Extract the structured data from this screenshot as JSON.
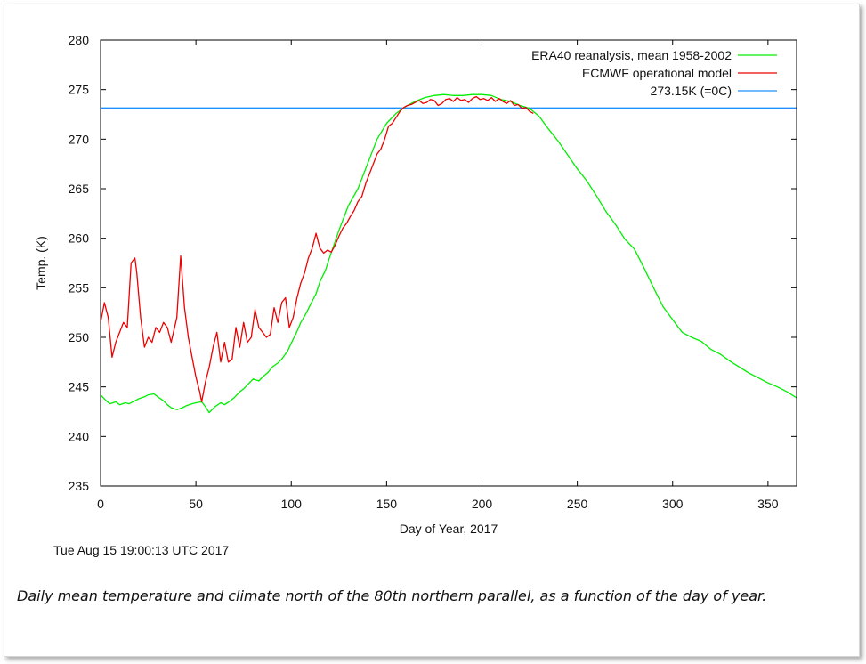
{
  "chart_data": {
    "type": "line",
    "xlabel": "Day of Year, 2017",
    "ylabel": "Temp. (K)",
    "xlim": [
      0,
      365
    ],
    "ylim": [
      235,
      280
    ],
    "xticks": [
      0,
      50,
      100,
      150,
      200,
      250,
      300,
      350
    ],
    "yticks": [
      235,
      240,
      245,
      250,
      255,
      260,
      265,
      270,
      275,
      280
    ],
    "legend_position": "top-right",
    "series": [
      {
        "name": "ERA40 reanalysis, mean 1958-2002",
        "color": "#00ee00",
        "x": [
          0,
          3,
          5,
          8,
          10,
          13,
          15,
          18,
          20,
          23,
          25,
          28,
          30,
          33,
          35,
          37,
          40,
          43,
          45,
          48,
          50,
          53,
          55,
          57,
          60,
          63,
          65,
          68,
          70,
          73,
          75,
          78,
          80,
          83,
          85,
          88,
          90,
          93,
          95,
          98,
          100,
          103,
          105,
          108,
          110,
          113,
          115,
          118,
          120,
          125,
          130,
          135,
          140,
          145,
          150,
          155,
          160,
          165,
          170,
          175,
          180,
          185,
          190,
          195,
          200,
          205,
          210,
          215,
          220,
          225,
          230,
          235,
          240,
          245,
          250,
          255,
          260,
          265,
          270,
          275,
          280,
          285,
          290,
          295,
          300,
          305,
          310,
          315,
          320,
          325,
          330,
          335,
          340,
          345,
          350,
          355,
          360,
          365
        ],
        "values": [
          244.2,
          243.6,
          243.3,
          243.5,
          243.2,
          243.4,
          243.3,
          243.6,
          243.8,
          244.0,
          244.2,
          244.3,
          244.0,
          243.6,
          243.2,
          242.9,
          242.7,
          242.9,
          243.1,
          243.3,
          243.4,
          243.5,
          243.0,
          242.4,
          243.0,
          243.4,
          243.2,
          243.6,
          243.9,
          244.5,
          244.8,
          245.4,
          245.8,
          245.6,
          246.0,
          246.5,
          247.0,
          247.4,
          247.8,
          248.6,
          249.4,
          250.6,
          251.5,
          252.5,
          253.3,
          254.4,
          255.6,
          256.8,
          258.0,
          260.8,
          263.3,
          265.0,
          267.5,
          270.0,
          271.6,
          272.6,
          273.3,
          273.8,
          274.2,
          274.4,
          274.5,
          274.4,
          274.4,
          274.5,
          274.5,
          274.4,
          274.0,
          273.8,
          273.4,
          273.1,
          272.3,
          271.0,
          269.8,
          268.4,
          267.0,
          265.8,
          264.3,
          262.7,
          261.4,
          259.9,
          258.9,
          257.0,
          255.0,
          253.1,
          251.8,
          250.5,
          250.0,
          249.6,
          248.8,
          248.3,
          247.6,
          247.0,
          246.4,
          245.9,
          245.4,
          245.0,
          244.5,
          243.9
        ]
      },
      {
        "name": "ECMWF operational model",
        "color": "#ee0000",
        "x": [
          0,
          2,
          4,
          6,
          8,
          10,
          12,
          14,
          16,
          18,
          19,
          21,
          23,
          25,
          27,
          29,
          31,
          33,
          35,
          37,
          40,
          42,
          44,
          46,
          48,
          50,
          52,
          53,
          55,
          57,
          59,
          61,
          63,
          65,
          67,
          69,
          71,
          73,
          75,
          77,
          79,
          81,
          83,
          85,
          87,
          89,
          91,
          93,
          95,
          97,
          99,
          101,
          103,
          105,
          107,
          109,
          111,
          113,
          115,
          117,
          119,
          121,
          123,
          125,
          127,
          129,
          131,
          133,
          135,
          137,
          139,
          141,
          143,
          145,
          147,
          149,
          151,
          153,
          155,
          157,
          159,
          161,
          163,
          165,
          167,
          169,
          171,
          173,
          175,
          177,
          179,
          181,
          183,
          185,
          187,
          189,
          191,
          193,
          195,
          197,
          199,
          201,
          203,
          205,
          207,
          209,
          211,
          213,
          215,
          217,
          219,
          221,
          223,
          225,
          227
        ],
        "values": [
          251.5,
          253.5,
          252.0,
          248.0,
          249.5,
          250.5,
          251.5,
          251.0,
          257.5,
          258.0,
          256.5,
          252.0,
          249.0,
          250.0,
          249.5,
          251.0,
          250.5,
          251.5,
          251.0,
          249.5,
          252.0,
          258.2,
          253.0,
          250.0,
          248.0,
          246.0,
          244.5,
          243.5,
          245.5,
          247.0,
          249.0,
          250.5,
          247.5,
          249.5,
          247.5,
          247.8,
          251.0,
          249.0,
          251.5,
          249.5,
          250.0,
          252.8,
          251.0,
          250.5,
          250.0,
          250.3,
          253.0,
          251.5,
          253.5,
          254.0,
          251.0,
          252.0,
          254.0,
          255.5,
          256.5,
          258.0,
          259.0,
          260.5,
          259.0,
          258.5,
          258.8,
          258.6,
          259.3,
          260.2,
          261.0,
          261.5,
          262.2,
          262.8,
          263.7,
          264.2,
          265.5,
          266.5,
          267.5,
          268.5,
          269.0,
          270.0,
          271.3,
          271.6,
          272.2,
          272.8,
          273.2,
          273.4,
          273.5,
          273.7,
          273.9,
          273.6,
          273.7,
          274.0,
          273.9,
          273.4,
          273.6,
          274.0,
          274.1,
          273.8,
          274.2,
          273.9,
          274.0,
          273.7,
          274.1,
          274.3,
          274.0,
          274.1,
          273.9,
          274.2,
          273.8,
          274.1,
          273.8,
          273.6,
          273.9,
          273.4,
          273.5,
          273.1,
          273.2,
          272.8,
          272.6
        ]
      },
      {
        "name": "273.15K (=0C)",
        "color": "#1e90ff",
        "x": [
          0,
          365
        ],
        "values": [
          273.15,
          273.15
        ]
      }
    ]
  },
  "timestamp": "Tue Aug 15 19:00:13 UTC 2017",
  "caption": "Daily mean temperature and climate north of the 80th northern parallel, as a function of the day of year."
}
